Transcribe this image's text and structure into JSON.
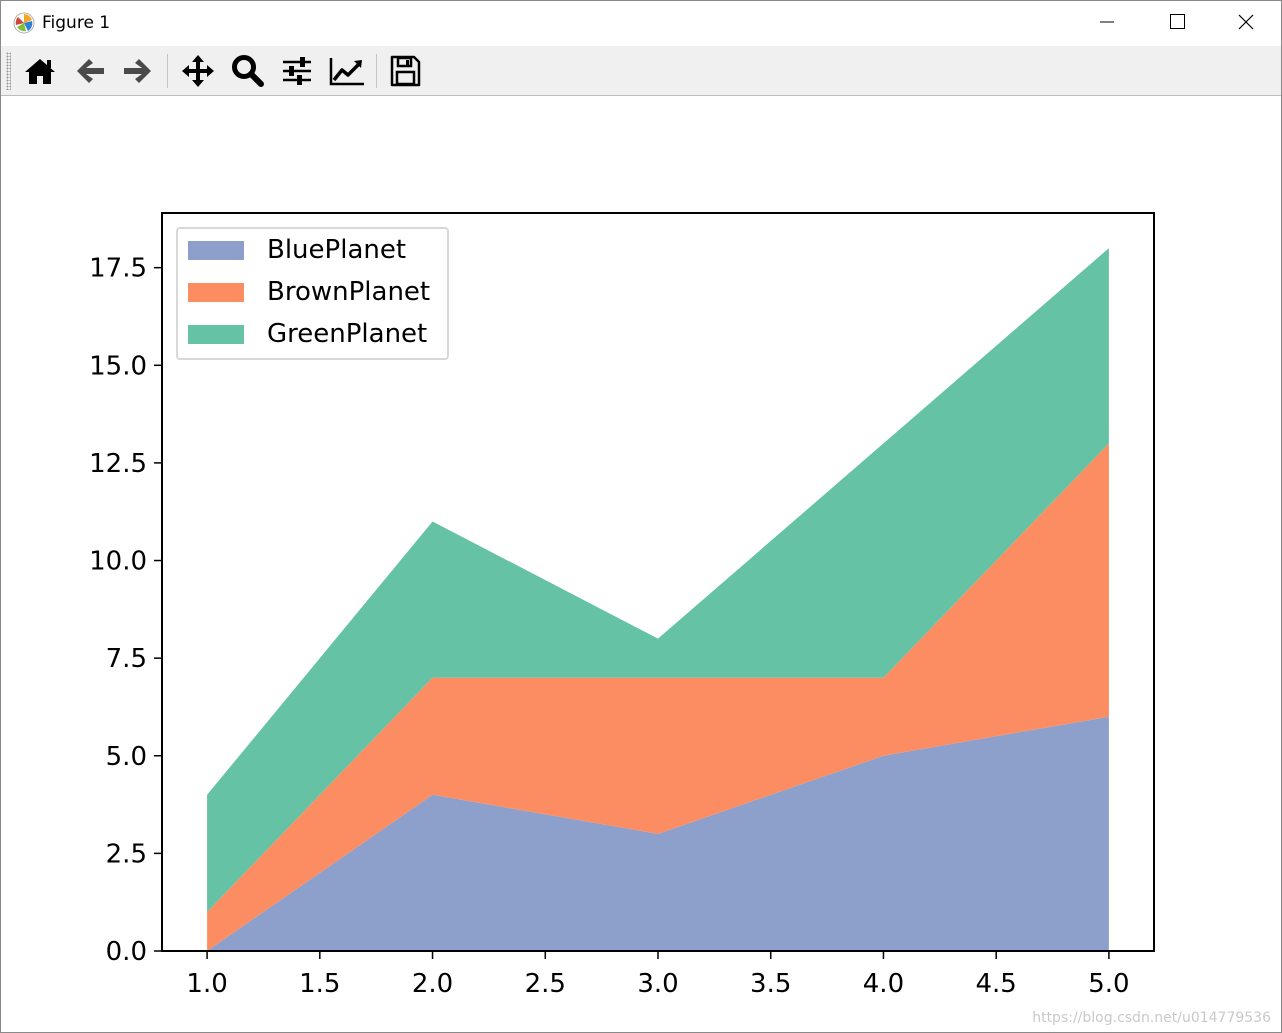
{
  "window": {
    "title": "Figure 1",
    "icons": {
      "app": "matplotlib-icon",
      "minimize": "minimize-icon",
      "maximize": "maximize-icon",
      "close": "close-icon"
    }
  },
  "toolbar": {
    "buttons": [
      {
        "name": "home",
        "icon": "home-icon"
      },
      {
        "name": "back",
        "icon": "arrow-left-icon"
      },
      {
        "name": "forward",
        "icon": "arrow-right-icon"
      },
      {
        "name": "pan",
        "icon": "move-icon"
      },
      {
        "name": "zoom",
        "icon": "magnifier-icon"
      },
      {
        "name": "subplots",
        "icon": "sliders-icon"
      },
      {
        "name": "customize",
        "icon": "line-chart-icon"
      },
      {
        "name": "save",
        "icon": "floppy-disk-icon"
      }
    ]
  },
  "chart_data": {
    "type": "area",
    "stacked": true,
    "title": "",
    "xlabel": "",
    "ylabel": "",
    "x": [
      1,
      2,
      3,
      4,
      5
    ],
    "series": [
      {
        "name": "BluePlanet",
        "values": [
          0,
          4,
          3,
          5,
          6
        ],
        "color": "#8da0cb"
      },
      {
        "name": "BrownPlanet",
        "values": [
          1,
          3,
          4,
          2,
          7
        ],
        "color": "#fc8d62"
      },
      {
        "name": "GreenPlanet",
        "values": [
          3,
          4,
          1,
          6,
          5
        ],
        "color": "#66c2a5"
      }
    ],
    "xlim": [
      0.8,
      5.2
    ],
    "ylim": [
      0,
      18.9
    ],
    "xticks": [
      "1.0",
      "1.5",
      "2.0",
      "2.5",
      "3.0",
      "3.5",
      "4.0",
      "4.5",
      "5.0"
    ],
    "yticks": [
      "0.0",
      "2.5",
      "5.0",
      "7.5",
      "10.0",
      "12.5",
      "15.0",
      "17.5"
    ],
    "legend_position": "upper-left",
    "grid": false
  },
  "watermark": "https://blog.csdn.net/u014779536"
}
